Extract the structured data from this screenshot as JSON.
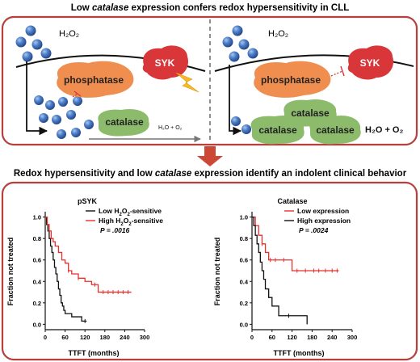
{
  "top": {
    "title_pre": "Low ",
    "title_em": "catalase",
    "title_post": " expression confers redox hypersensitivity in CLL",
    "left": {
      "h2o2": "H₂O₂",
      "phosphatase": "phosphatase",
      "syk": "SYK",
      "catalase": "catalase",
      "product": "H₂O + O₂"
    },
    "right": {
      "h2o2": "H₂O₂",
      "phosphatase": "phosphatase",
      "syk": "SYK",
      "catalase_labels": [
        "catalase",
        "catalase",
        "catalase"
      ],
      "product": "H₂O + O₂"
    }
  },
  "bottom": {
    "title_pre": "Redox hypersensitivity and low ",
    "title_em": "catalase",
    "title_post": " expression identify an indolent clinical behavior"
  },
  "colors": {
    "frame": "#b5403c",
    "phosphatase": "#ef8e4f",
    "syk": "#d9363a",
    "catalase": "#8dbb6c",
    "molecule": "#3f6fb5",
    "arrow_fill": "#cc4736",
    "lightning": "#f5b92a",
    "series_black": "#111111",
    "series_red": "#e8302c"
  },
  "icons": [
    "lightning-icon",
    "molecule-icon",
    "down-arrow-icon"
  ],
  "chart_data": [
    {
      "type": "line",
      "step": true,
      "title": "pSYK",
      "xlabel": "TTFT (months)",
      "ylabel": "Fraction not treated",
      "xlim": [
        0,
        300
      ],
      "ylim": [
        -0.05,
        1.05
      ],
      "xticks": [
        0,
        60,
        120,
        180,
        240,
        300
      ],
      "yticks": [
        0.0,
        0.2,
        0.4,
        0.6,
        0.8,
        1.0
      ],
      "x_tick_labels": [
        "0",
        "60",
        "120",
        "180",
        "240",
        "300"
      ],
      "y_tick_labels": [
        "0.0",
        "0.2",
        "0.4",
        "0.6",
        "0.8",
        "1.0"
      ],
      "legend_position": "top-right",
      "pvalue": "P = .0016",
      "series": [
        {
          "name": "Low H2O2-sensitive",
          "legend_pre": "Low H",
          "legend_mid": "O",
          "legend_post": "-sensitive",
          "color": "#111111",
          "x": [
            0,
            4,
            8,
            12,
            16,
            20,
            24,
            28,
            32,
            36,
            40,
            44,
            48,
            52,
            56,
            60,
            66,
            72,
            80,
            90,
            110,
            125
          ],
          "y": [
            1.0,
            0.93,
            0.87,
            0.8,
            0.73,
            0.67,
            0.6,
            0.53,
            0.47,
            0.4,
            0.33,
            0.27,
            0.2,
            0.17,
            0.13,
            0.1,
            0.1,
            0.1,
            0.07,
            0.07,
            0.03,
            0.03
          ],
          "censored_x": [
            120
          ]
        },
        {
          "name": "High H2O2-sensitive",
          "legend_pre": "High H",
          "legend_mid": "O",
          "legend_post": "-sensitive",
          "color": "#e8302c",
          "x": [
            0,
            6,
            12,
            18,
            24,
            30,
            40,
            50,
            60,
            70,
            80,
            100,
            120,
            140,
            160,
            170,
            260
          ],
          "y": [
            1.0,
            0.93,
            0.87,
            0.8,
            0.77,
            0.73,
            0.67,
            0.6,
            0.57,
            0.5,
            0.47,
            0.43,
            0.4,
            0.37,
            0.3,
            0.3,
            0.3
          ],
          "censored_x": [
            70,
            100,
            150,
            175,
            190,
            205,
            220,
            235,
            250
          ]
        }
      ]
    },
    {
      "type": "line",
      "step": true,
      "title": "Catalase",
      "xlabel": "TTFT (months)",
      "ylabel": "Fraction not treated",
      "xlim": [
        0,
        300
      ],
      "ylim": [
        -0.05,
        1.05
      ],
      "xticks": [
        0,
        60,
        120,
        180,
        240,
        300
      ],
      "yticks": [
        0.0,
        0.2,
        0.4,
        0.6,
        0.8,
        1.0
      ],
      "x_tick_labels": [
        "0",
        "60",
        "120",
        "180",
        "240",
        "300"
      ],
      "y_tick_labels": [
        "0.0",
        "0.2",
        "0.4",
        "0.6",
        "0.8",
        "1.0"
      ],
      "legend_position": "top-right",
      "pvalue": "P = .0024",
      "series": [
        {
          "name": "Low expression",
          "legend_pre": "Low expression",
          "legend_mid": "",
          "legend_post": "",
          "color": "#e8302c",
          "x": [
            0,
            10,
            20,
            30,
            40,
            50,
            60,
            90,
            120,
            200,
            260
          ],
          "y": [
            1.0,
            0.92,
            0.83,
            0.75,
            0.67,
            0.6,
            0.6,
            0.6,
            0.5,
            0.5,
            0.5
          ],
          "censored_x": [
            30,
            55,
            70,
            95,
            135,
            160,
            185,
            200,
            220,
            240,
            255
          ]
        },
        {
          "name": "High expression",
          "legend_pre": "High expression",
          "legend_mid": "",
          "legend_post": "",
          "color": "#111111",
          "x": [
            0,
            5,
            10,
            15,
            20,
            25,
            30,
            35,
            40,
            50,
            60,
            80,
            100,
            110,
            165
          ],
          "y": [
            1.0,
            0.92,
            0.83,
            0.75,
            0.67,
            0.58,
            0.5,
            0.42,
            0.33,
            0.25,
            0.17,
            0.08,
            0.08,
            0.08,
            0.0
          ],
          "censored_x": [
            110
          ]
        }
      ]
    }
  ]
}
